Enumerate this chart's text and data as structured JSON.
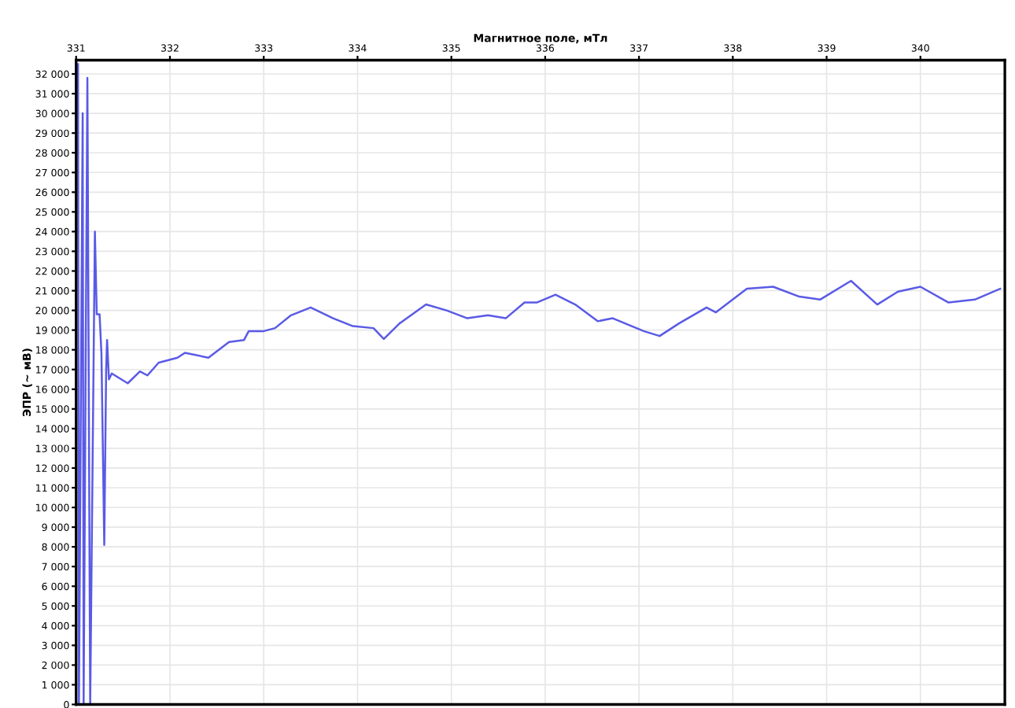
{
  "chart_data": {
    "type": "line",
    "xlabel": "Магнитное поле, мТл",
    "ylabel": "ЭПР (~ мВ)",
    "xlim": [
      331,
      340.9
    ],
    "ylim": [
      0,
      32700
    ],
    "xticks": [
      331,
      332,
      333,
      334,
      335,
      336,
      337,
      338,
      339,
      340
    ],
    "yticks": [
      0,
      {
        "value": 1000,
        "label": "1 000"
      },
      {
        "value": 2000,
        "label": "2 000"
      },
      {
        "value": 3000,
        "label": "3 000"
      },
      {
        "value": 4000,
        "label": "4 000"
      },
      {
        "value": 5000,
        "label": "5 000"
      },
      {
        "value": 6000,
        "label": "6 000"
      },
      {
        "value": 7000,
        "label": "7 000"
      },
      {
        "value": 8000,
        "label": "8 000"
      },
      {
        "value": 9000,
        "label": "9 000"
      },
      {
        "value": 10000,
        "label": "10 000"
      },
      {
        "value": 11000,
        "label": "11 000"
      },
      {
        "value": 12000,
        "label": "12 000"
      },
      {
        "value": 13000,
        "label": "13 000"
      },
      {
        "value": 14000,
        "label": "14 000"
      },
      {
        "value": 15000,
        "label": "15 000"
      },
      {
        "value": 16000,
        "label": "16 000"
      },
      {
        "value": 17000,
        "label": "17 000"
      },
      {
        "value": 18000,
        "label": "18 000"
      },
      {
        "value": 19000,
        "label": "19 000"
      },
      {
        "value": 20000,
        "label": "20 000"
      },
      {
        "value": 21000,
        "label": "21 000"
      },
      {
        "value": 22000,
        "label": "22 000"
      },
      {
        "value": 23000,
        "label": "23 000"
      },
      {
        "value": 24000,
        "label": "24 000"
      },
      {
        "value": 25000,
        "label": "25 000"
      },
      {
        "value": 26000,
        "label": "26 000"
      },
      {
        "value": 27000,
        "label": "27 000"
      },
      {
        "value": 28000,
        "label": "28 000"
      },
      {
        "value": 29000,
        "label": "29 000"
      },
      {
        "value": 30000,
        "label": "30 000"
      },
      {
        "value": 31000,
        "label": "31 000"
      },
      {
        "value": 32000,
        "label": "32 000"
      }
    ],
    "grid": true,
    "marker": "none",
    "line_style": "solid",
    "series": [
      {
        "color": "#5a5ae6",
        "x": [
          331.02,
          331.03,
          331.07,
          331.08,
          331.12,
          331.15,
          331.2,
          331.22,
          331.25,
          331.27,
          331.3,
          331.32,
          331.33,
          331.35,
          331.38,
          331.55,
          331.68,
          331.76,
          331.88,
          332.08,
          332.16,
          332.41,
          332.63,
          332.79,
          332.84,
          333.0,
          333.12,
          333.29,
          333.5,
          333.74,
          333.95,
          334.17,
          334.28,
          334.45,
          334.73,
          334.95,
          335.17,
          335.39,
          335.58,
          335.78,
          335.91,
          336.11,
          336.32,
          336.56,
          336.72,
          337.05,
          337.22,
          337.43,
          337.72,
          337.82,
          338.15,
          338.43,
          338.71,
          338.93,
          339.26,
          339.54,
          339.76,
          340.0,
          340.3,
          340.58,
          340.85
        ],
        "values": [
          32500,
          0,
          30000,
          0,
          31800,
          0,
          24000,
          19800,
          19800,
          17800,
          8100,
          17000,
          18500,
          16500,
          16800,
          16300,
          16900,
          16700,
          17350,
          17600,
          17850,
          17600,
          18400,
          18500,
          18950,
          18950,
          19100,
          19750,
          20150,
          19600,
          19200,
          19100,
          18550,
          19350,
          20300,
          20000,
          19600,
          19750,
          19600,
          20400,
          20400,
          20800,
          20300,
          19450,
          19600,
          18950,
          18700,
          19350,
          20150,
          19900,
          21100,
          21200,
          20700,
          20550,
          21500,
          20300,
          20950,
          21200,
          20400,
          20550,
          21100
        ]
      }
    ]
  }
}
